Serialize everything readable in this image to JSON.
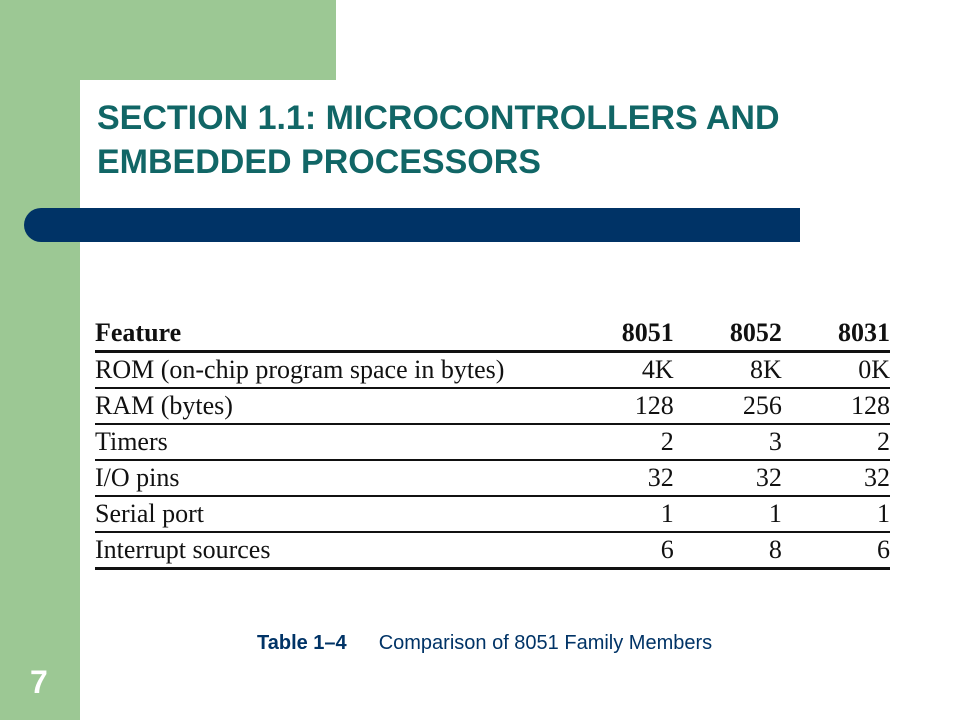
{
  "slide": {
    "title": "SECTION 1.1: MICROCONTROLLERS AND EMBEDDED PROCESSORS",
    "page_number": "7"
  },
  "table": {
    "headers": [
      "Feature",
      "8051",
      "8052",
      "8031"
    ],
    "rows": [
      [
        "ROM (on-chip program space in bytes)",
        "4K",
        "8K",
        "0K"
      ],
      [
        "RAM (bytes)",
        "128",
        "256",
        "128"
      ],
      [
        "Timers",
        "2",
        "3",
        "2"
      ],
      [
        "I/O pins",
        "32",
        "32",
        "32"
      ],
      [
        "Serial port",
        "1",
        "1",
        "1"
      ],
      [
        "Interrupt sources",
        "6",
        "8",
        "6"
      ]
    ]
  },
  "caption": {
    "label": "Table 1–4",
    "text": "Comparison of 8051 Family Members"
  },
  "colors": {
    "frame_green": "#9cc894",
    "title_teal": "#116666",
    "bar_navy": "#003366"
  }
}
